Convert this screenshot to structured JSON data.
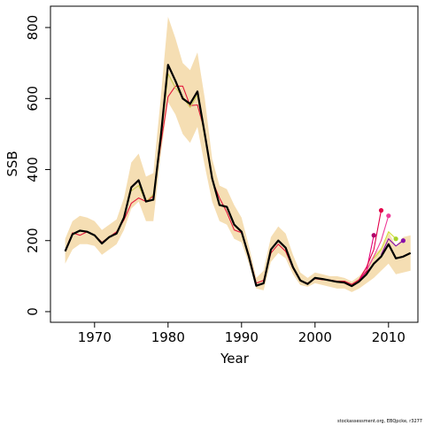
{
  "chart_data": {
    "type": "line",
    "title": "",
    "xlabel": "Year",
    "ylabel": "SSB",
    "xlim": [
      1964,
      2014
    ],
    "ylim": [
      -30,
      860
    ],
    "x_ticks": [
      1970,
      1980,
      1990,
      2000,
      2010
    ],
    "y_ticks": [
      0,
      200,
      400,
      600,
      800
    ],
    "band_color": "#f5deb3",
    "band": {
      "years": [
        1966,
        1967,
        1968,
        1969,
        1970,
        1971,
        1972,
        1973,
        1974,
        1975,
        1976,
        1977,
        1978,
        1979,
        1980,
        1981,
        1982,
        1983,
        1984,
        1985,
        1986,
        1987,
        1988,
        1989,
        1990,
        1991,
        1992,
        1993,
        1994,
        1995,
        1996,
        1997,
        1998,
        1999,
        2000,
        2001,
        2002,
        2003,
        2004,
        2005,
        2006,
        2007,
        2008,
        2009,
        2010,
        2011,
        2012,
        2013
      ],
      "lower": [
        135,
        175,
        190,
        190,
        185,
        160,
        175,
        190,
        230,
        290,
        310,
        255,
        255,
        440,
        590,
        555,
        500,
        475,
        520,
        410,
        310,
        255,
        245,
        205,
        195,
        135,
        65,
        60,
        140,
        165,
        150,
        105,
        75,
        70,
        80,
        75,
        70,
        65,
        65,
        55,
        65,
        80,
        95,
        115,
        135,
        105,
        110,
        115
      ],
      "upper": [
        205,
        255,
        270,
        265,
        255,
        230,
        245,
        260,
        320,
        420,
        445,
        380,
        390,
        600,
        830,
        770,
        700,
        680,
        730,
        600,
        430,
        355,
        345,
        300,
        265,
        185,
        95,
        115,
        210,
        240,
        220,
        160,
        110,
        95,
        110,
        105,
        100,
        100,
        95,
        85,
        100,
        125,
        160,
        180,
        225,
        185,
        210,
        215
      ]
    },
    "series": [
      {
        "color": "#000000",
        "x": [
          1966,
          1967,
          1968,
          1969,
          1970,
          1971,
          1972,
          1973,
          1974,
          1975,
          1976,
          1977,
          1978,
          1979,
          1980,
          1981,
          1982,
          1983,
          1984,
          1985,
          1986,
          1987,
          1988,
          1989,
          1990,
          1991,
          1992,
          1993,
          1994,
          1995,
          1996,
          1997,
          1998,
          1999,
          2000,
          2001,
          2002,
          2003,
          2004,
          2005,
          2006,
          2007,
          2008,
          2009,
          2010,
          2011,
          2012,
          2013
        ],
        "values": [
          170,
          218,
          228,
          225,
          215,
          192,
          210,
          220,
          265,
          350,
          370,
          310,
          315,
          490,
          695,
          650,
          600,
          585,
          620,
          500,
          375,
          300,
          295,
          245,
          225,
          155,
          73,
          80,
          175,
          200,
          180,
          125,
          88,
          78,
          95,
          92,
          88,
          84,
          82,
          72,
          85,
          105,
          135,
          155,
          190,
          150,
          155,
          165
        ]
      },
      {
        "color": "#e3183c",
        "x": [
          1966,
          1967,
          1968,
          1969,
          1970,
          1971,
          1972,
          1973,
          1974,
          1975,
          1976,
          1977,
          1978,
          1979,
          1980,
          1981,
          1982,
          1983,
          1984,
          1985,
          1986,
          1987,
          1988,
          1989,
          1990,
          1991,
          1992,
          1993,
          1994,
          1995,
          1996,
          1997,
          1998,
          1999,
          2000,
          2001,
          2002,
          2003,
          2004,
          2005,
          2006,
          2007,
          2008
        ],
        "values": [
          172,
          222,
          215,
          225,
          215,
          195,
          210,
          225,
          258,
          305,
          320,
          310,
          325,
          470,
          605,
          635,
          635,
          580,
          582,
          505,
          370,
          320,
          280,
          230,
          222,
          160,
          80,
          88,
          165,
          190,
          170,
          122,
          87,
          80,
          93,
          90,
          89,
          86,
          86,
          77,
          90,
          112,
          132
        ]
      },
      {
        "color": "#e3007a",
        "x": [
          2006,
          2007,
          2008
        ],
        "values": [
          88,
          115,
          215
        ]
      },
      {
        "color": "#e3004a",
        "x": [
          2006,
          2007,
          2008,
          2009
        ],
        "values": [
          90,
          125,
          175,
          285
        ]
      },
      {
        "color": "#ee3d9a",
        "x": [
          2007,
          2008,
          2009,
          2010
        ],
        "values": [
          115,
          155,
          200,
          270
        ]
      },
      {
        "color": "#d2e23c",
        "x": [
          2008,
          2009,
          2010,
          2011
        ],
        "values": [
          150,
          175,
          225,
          205
        ]
      },
      {
        "color": "#8a0fa8",
        "x": [
          2009,
          2010,
          2011,
          2012
        ],
        "values": [
          160,
          205,
          185,
          200
        ]
      },
      {
        "color": "#cccc55",
        "x": [
          1975,
          1976,
          1977,
          1978,
          1979,
          1980,
          1981,
          1982,
          1983,
          1984,
          1985
        ],
        "values": [
          340,
          355,
          310,
          330,
          480,
          670,
          630,
          605,
          575,
          610,
          490
        ]
      }
    ],
    "end_points": [
      {
        "x": 2008,
        "y": 215,
        "color": "#b0006a"
      },
      {
        "x": 2009,
        "y": 285,
        "color": "#e3004a"
      },
      {
        "x": 2010,
        "y": 270,
        "color": "#ee3d9a"
      },
      {
        "x": 2011,
        "y": 205,
        "color": "#a8d22a"
      },
      {
        "x": 2012,
        "y": 200,
        "color": "#8a0fa8"
      }
    ]
  },
  "footer": "stockassessment.org, EBQpcke, r3277"
}
